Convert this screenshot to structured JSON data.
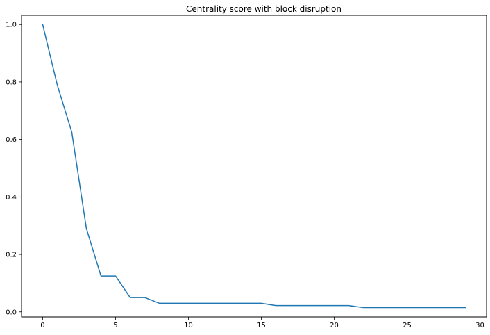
{
  "chart_data": {
    "type": "line",
    "title": "Centrality score with block disruption",
    "xlabel": "",
    "ylabel": "",
    "xlim": [
      -1.45,
      30.45
    ],
    "ylim": [
      -0.0175,
      1.032
    ],
    "xticks": [
      0,
      5,
      10,
      15,
      20,
      25,
      30
    ],
    "yticks": [
      0.0,
      0.2,
      0.4,
      0.6,
      0.8,
      1.0
    ],
    "xtick_labels": [
      "0",
      "5",
      "10",
      "15",
      "20",
      "25",
      "30"
    ],
    "ytick_labels": [
      "0.0",
      "0.2",
      "0.4",
      "0.6",
      "0.8",
      "1.0"
    ],
    "grid": false,
    "legend": false,
    "series": [
      {
        "color": "#1f77b4",
        "x": [
          0,
          1,
          2,
          3,
          4,
          5,
          6,
          7,
          8,
          9,
          10,
          11,
          12,
          13,
          14,
          15,
          16,
          17,
          18,
          19,
          20,
          21,
          22,
          23,
          24,
          25,
          26,
          27,
          28,
          29
        ],
        "y": [
          1.0,
          0.79,
          0.625,
          0.29,
          0.125,
          0.125,
          0.05,
          0.05,
          0.03,
          0.03,
          0.03,
          0.03,
          0.03,
          0.03,
          0.03,
          0.03,
          0.022,
          0.022,
          0.022,
          0.022,
          0.022,
          0.022,
          0.015,
          0.015,
          0.015,
          0.015,
          0.015,
          0.015,
          0.015,
          0.015
        ]
      }
    ]
  }
}
